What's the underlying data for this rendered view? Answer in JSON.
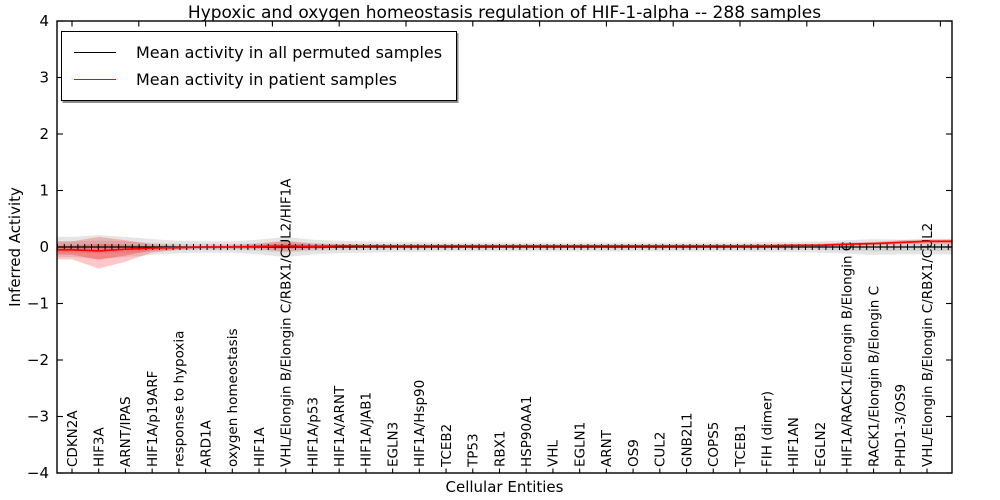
{
  "title": "Hypoxic and oxygen homeostasis regulation of HIF-1-alpha -- 288 samples",
  "legend": {
    "items": [
      {
        "label": "Mean activity in all permuted samples",
        "color": "#000000"
      },
      {
        "label": "Mean activity in patient samples",
        "color": "#ff0000"
      }
    ]
  },
  "chart_data": {
    "type": "line",
    "title": "Hypoxic and oxygen homeostasis regulation of HIF-1-alpha -- 288 samples",
    "xlabel": "Cellular Entities",
    "ylabel": "Inferred Activity",
    "ylim": [
      -4,
      4
    ],
    "yticks": [
      -4,
      -3,
      -2,
      -1,
      0,
      1,
      2,
      3,
      4
    ],
    "grid": false,
    "legend_position": "upper left",
    "categories": [
      "CDKN2A",
      "HIF3A",
      "ARNT/IPAS",
      "HIF1A/p19ARF",
      "response to hypoxia",
      "ARD1A",
      "oxygen homeostasis",
      "HIF1A",
      "VHL/Elongin B/Elongin C/RBX1/CUL2/HIF1A",
      "HIF1A/p53",
      "HIF1A/ARNT",
      "HIF1A/JAB1",
      "EGLN3",
      "HIF1A/Hsp90",
      "TCEB2",
      "TP53",
      "RBX1",
      "HSP90AA1",
      "VHL",
      "EGLN1",
      "ARNT",
      "OS9",
      "CUL2",
      "GNB2L1",
      "COPS5",
      "TCEB1",
      "FIH (dimer)",
      "HIF1AN",
      "EGLN2",
      "HIF1A/RACK1/Elongin B/Elongin C",
      "RACK1/Elongin B/Elongin C",
      "PHD1-3/OS9",
      "VHL/Elongin B/Elongin C/RBX1/CUL2"
    ],
    "series": [
      {
        "name": "Mean activity in all permuted samples",
        "color": "#000000",
        "values": [
          0,
          0,
          0,
          0,
          0,
          0,
          0,
          0,
          0,
          0,
          0,
          0,
          0,
          0,
          0,
          0,
          0,
          0,
          0,
          0,
          0,
          0,
          0,
          0,
          0,
          0,
          0,
          0,
          0,
          0,
          0,
          0,
          0
        ],
        "band_halfwidth": [
          0.18,
          0.21,
          0.18,
          0.14,
          0.11,
          0.1,
          0.1,
          0.13,
          0.18,
          0.13,
          0.11,
          0.1,
          0.09,
          0.09,
          0.08,
          0.08,
          0.08,
          0.08,
          0.08,
          0.08,
          0.08,
          0.08,
          0.08,
          0.08,
          0.08,
          0.08,
          0.09,
          0.09,
          0.1,
          0.12,
          0.14,
          0.13,
          0.13
        ]
      },
      {
        "name": "Mean activity in patient samples",
        "color": "#ff0000",
        "values": [
          -0.05,
          -0.07,
          -0.04,
          -0.02,
          -0.01,
          0.0,
          0.0,
          0.01,
          0.02,
          0.01,
          0.02,
          0.02,
          0.02,
          0.02,
          0.02,
          0.02,
          0.02,
          0.02,
          0.02,
          0.02,
          0.02,
          0.02,
          0.02,
          0.02,
          0.02,
          0.02,
          0.02,
          0.03,
          0.03,
          0.05,
          0.06,
          0.08,
          0.1
        ],
        "band_upper": [
          0.1,
          0.18,
          0.12,
          0.05,
          0.02,
          0.02,
          0.03,
          0.06,
          0.11,
          0.06,
          0.05,
          0.04,
          0.04,
          0.04,
          0.04,
          0.04,
          0.04,
          0.04,
          0.04,
          0.04,
          0.04,
          0.04,
          0.04,
          0.04,
          0.04,
          0.04,
          0.05,
          0.05,
          0.06,
          0.08,
          0.09,
          0.12,
          0.14
        ],
        "band_lower": [
          -0.22,
          -0.38,
          -0.26,
          -0.1,
          -0.05,
          -0.03,
          -0.03,
          -0.04,
          -0.08,
          -0.04,
          -0.02,
          -0.01,
          0.0,
          0.0,
          0.0,
          0.0,
          0.0,
          0.0,
          0.0,
          0.0,
          0.0,
          0.0,
          0.0,
          0.0,
          0.0,
          0.0,
          0.0,
          0.01,
          0.01,
          0.02,
          0.03,
          0.05,
          0.06
        ]
      }
    ]
  }
}
